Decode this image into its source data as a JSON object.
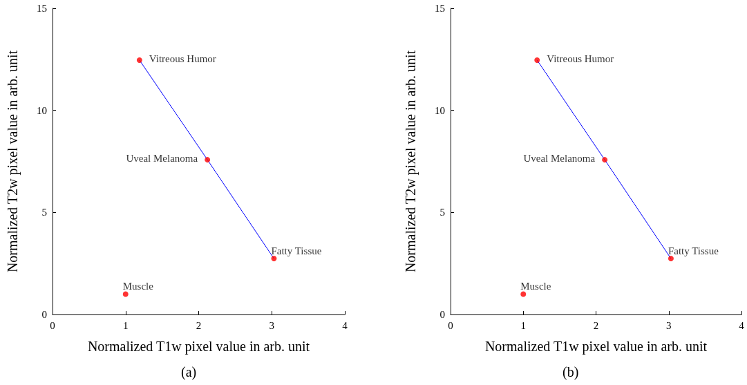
{
  "chart_data": [
    {
      "type": "scatter",
      "xlabel": "Normalized T1w pixel value in arb. unit",
      "ylabel": "Normalized T2w pixel value in arb. unit",
      "xlim": [
        0,
        4
      ],
      "xticks": [
        0,
        1,
        2,
        3,
        4
      ],
      "ylim": [
        0,
        15
      ],
      "yticks": [
        0,
        5,
        10,
        15
      ],
      "grid": false,
      "marker": "circle",
      "series": [
        {
          "type": "line",
          "color": "#0000ff",
          "marker": "none",
          "x": [
            1.19,
            2.12,
            3.03
          ],
          "values": [
            12.46,
            7.58,
            2.74
          ]
        },
        {
          "color": "#ff0000",
          "x": [
            1.19,
            2.12,
            3.03,
            1
          ],
          "values": [
            12.46,
            7.58,
            2.74,
            1
          ]
        }
      ],
      "annotations": [
        {
          "text": "Vitreous Humor",
          "x": 1.19,
          "y": 12.46
        },
        {
          "text": "Uveal Melanoma",
          "x": 2.12,
          "y": 7.58
        },
        {
          "text": "Fatty Tissue",
          "x": 3.03,
          "y": 2.74
        },
        {
          "text": "Muscle",
          "x": 1,
          "y": 1
        },
        "(a)"
      ]
    },
    {
      "type": "scatter",
      "xlabel": "Normalized T1w pixel value in arb. unit",
      "ylabel": "Normalized T2w pixel value in arb. unit",
      "xlim": [
        0,
        4
      ],
      "xticks": [
        0,
        1,
        2,
        3,
        4
      ],
      "ylim": [
        0,
        15
      ],
      "yticks": [
        0,
        5,
        10,
        15
      ],
      "grid": false,
      "marker": "circle",
      "series": [
        {
          "type": "line",
          "color": "#0000ff",
          "marker": "none",
          "x": [
            1.19,
            2.12,
            3.03
          ],
          "values": [
            12.46,
            7.58,
            2.74
          ]
        },
        {
          "color": "#ff0000",
          "x": [
            1.19,
            2.12,
            3.03,
            1
          ],
          "values": [
            12.46,
            7.58,
            2.74,
            1
          ]
        }
      ],
      "annotations": [
        {
          "text": "Vitreous Humor",
          "x": 1.19,
          "y": 12.46
        },
        {
          "text": "Uveal Melanoma",
          "x": 2.12,
          "y": 7.58
        },
        {
          "text": "Fatty Tissue",
          "x": 3.03,
          "y": 2.74
        },
        {
          "text": "Muscle",
          "x": 1,
          "y": 1
        },
        "(b)"
      ]
    }
  ]
}
